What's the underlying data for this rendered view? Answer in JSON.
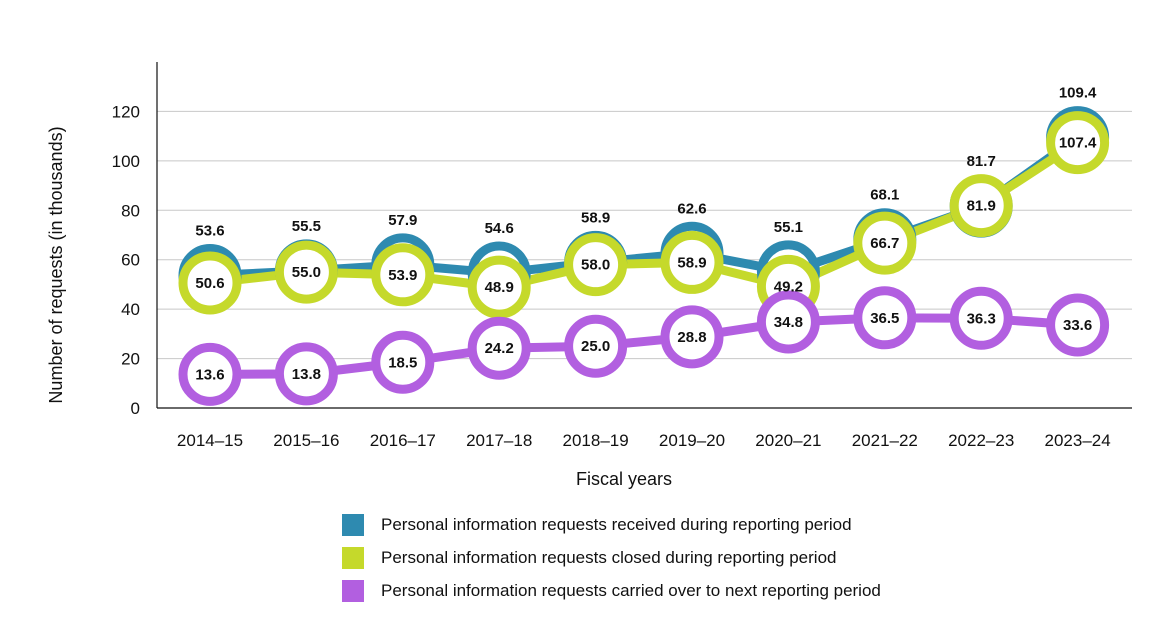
{
  "chart_data": {
    "type": "line",
    "title": "",
    "xlabel": "Fiscal years",
    "ylabel": "Number of requests (in thousands)",
    "ylim": [
      0,
      140
    ],
    "yticks": [
      0,
      20,
      40,
      60,
      80,
      100,
      120
    ],
    "categories": [
      "2014–15",
      "2015–16",
      "2016–17",
      "2017–18",
      "2018–19",
      "2019–20",
      "2020–21",
      "2021–22",
      "2022–23",
      "2023–24"
    ],
    "series": [
      {
        "name": "Personal information requests received during reporting period",
        "color": "#2E8AB0",
        "values": [
          53.6,
          55.5,
          57.9,
          54.6,
          58.9,
          62.6,
          55.1,
          68.1,
          81.7,
          109.4
        ],
        "labels": [
          "53.6",
          "55.5",
          "57.9",
          "54.6",
          "58.9",
          "62.6",
          "55.1",
          "68.1",
          "81.7",
          "109.4"
        ]
      },
      {
        "name": "Personal information requests closed during reporting period",
        "color": "#C5D92B",
        "values": [
          50.6,
          55.0,
          53.9,
          48.9,
          58.0,
          58.9,
          49.2,
          66.7,
          81.9,
          107.4
        ],
        "labels": [
          "50.6",
          "55.0",
          "53.9",
          "48.9",
          "58.0",
          "58.9",
          "49.2",
          "66.7",
          "81.9",
          "107.4"
        ]
      },
      {
        "name": "Personal information requests carried over to next reporting period",
        "color": "#B25FE0",
        "values": [
          13.6,
          13.8,
          18.5,
          24.2,
          25.0,
          28.8,
          34.8,
          36.5,
          36.3,
          33.6
        ],
        "labels": [
          "13.6",
          "13.8",
          "18.5",
          "24.2",
          "25.0",
          "28.8",
          "34.8",
          "36.5",
          "36.3",
          "33.6"
        ]
      }
    ],
    "legend_position": "bottom"
  }
}
